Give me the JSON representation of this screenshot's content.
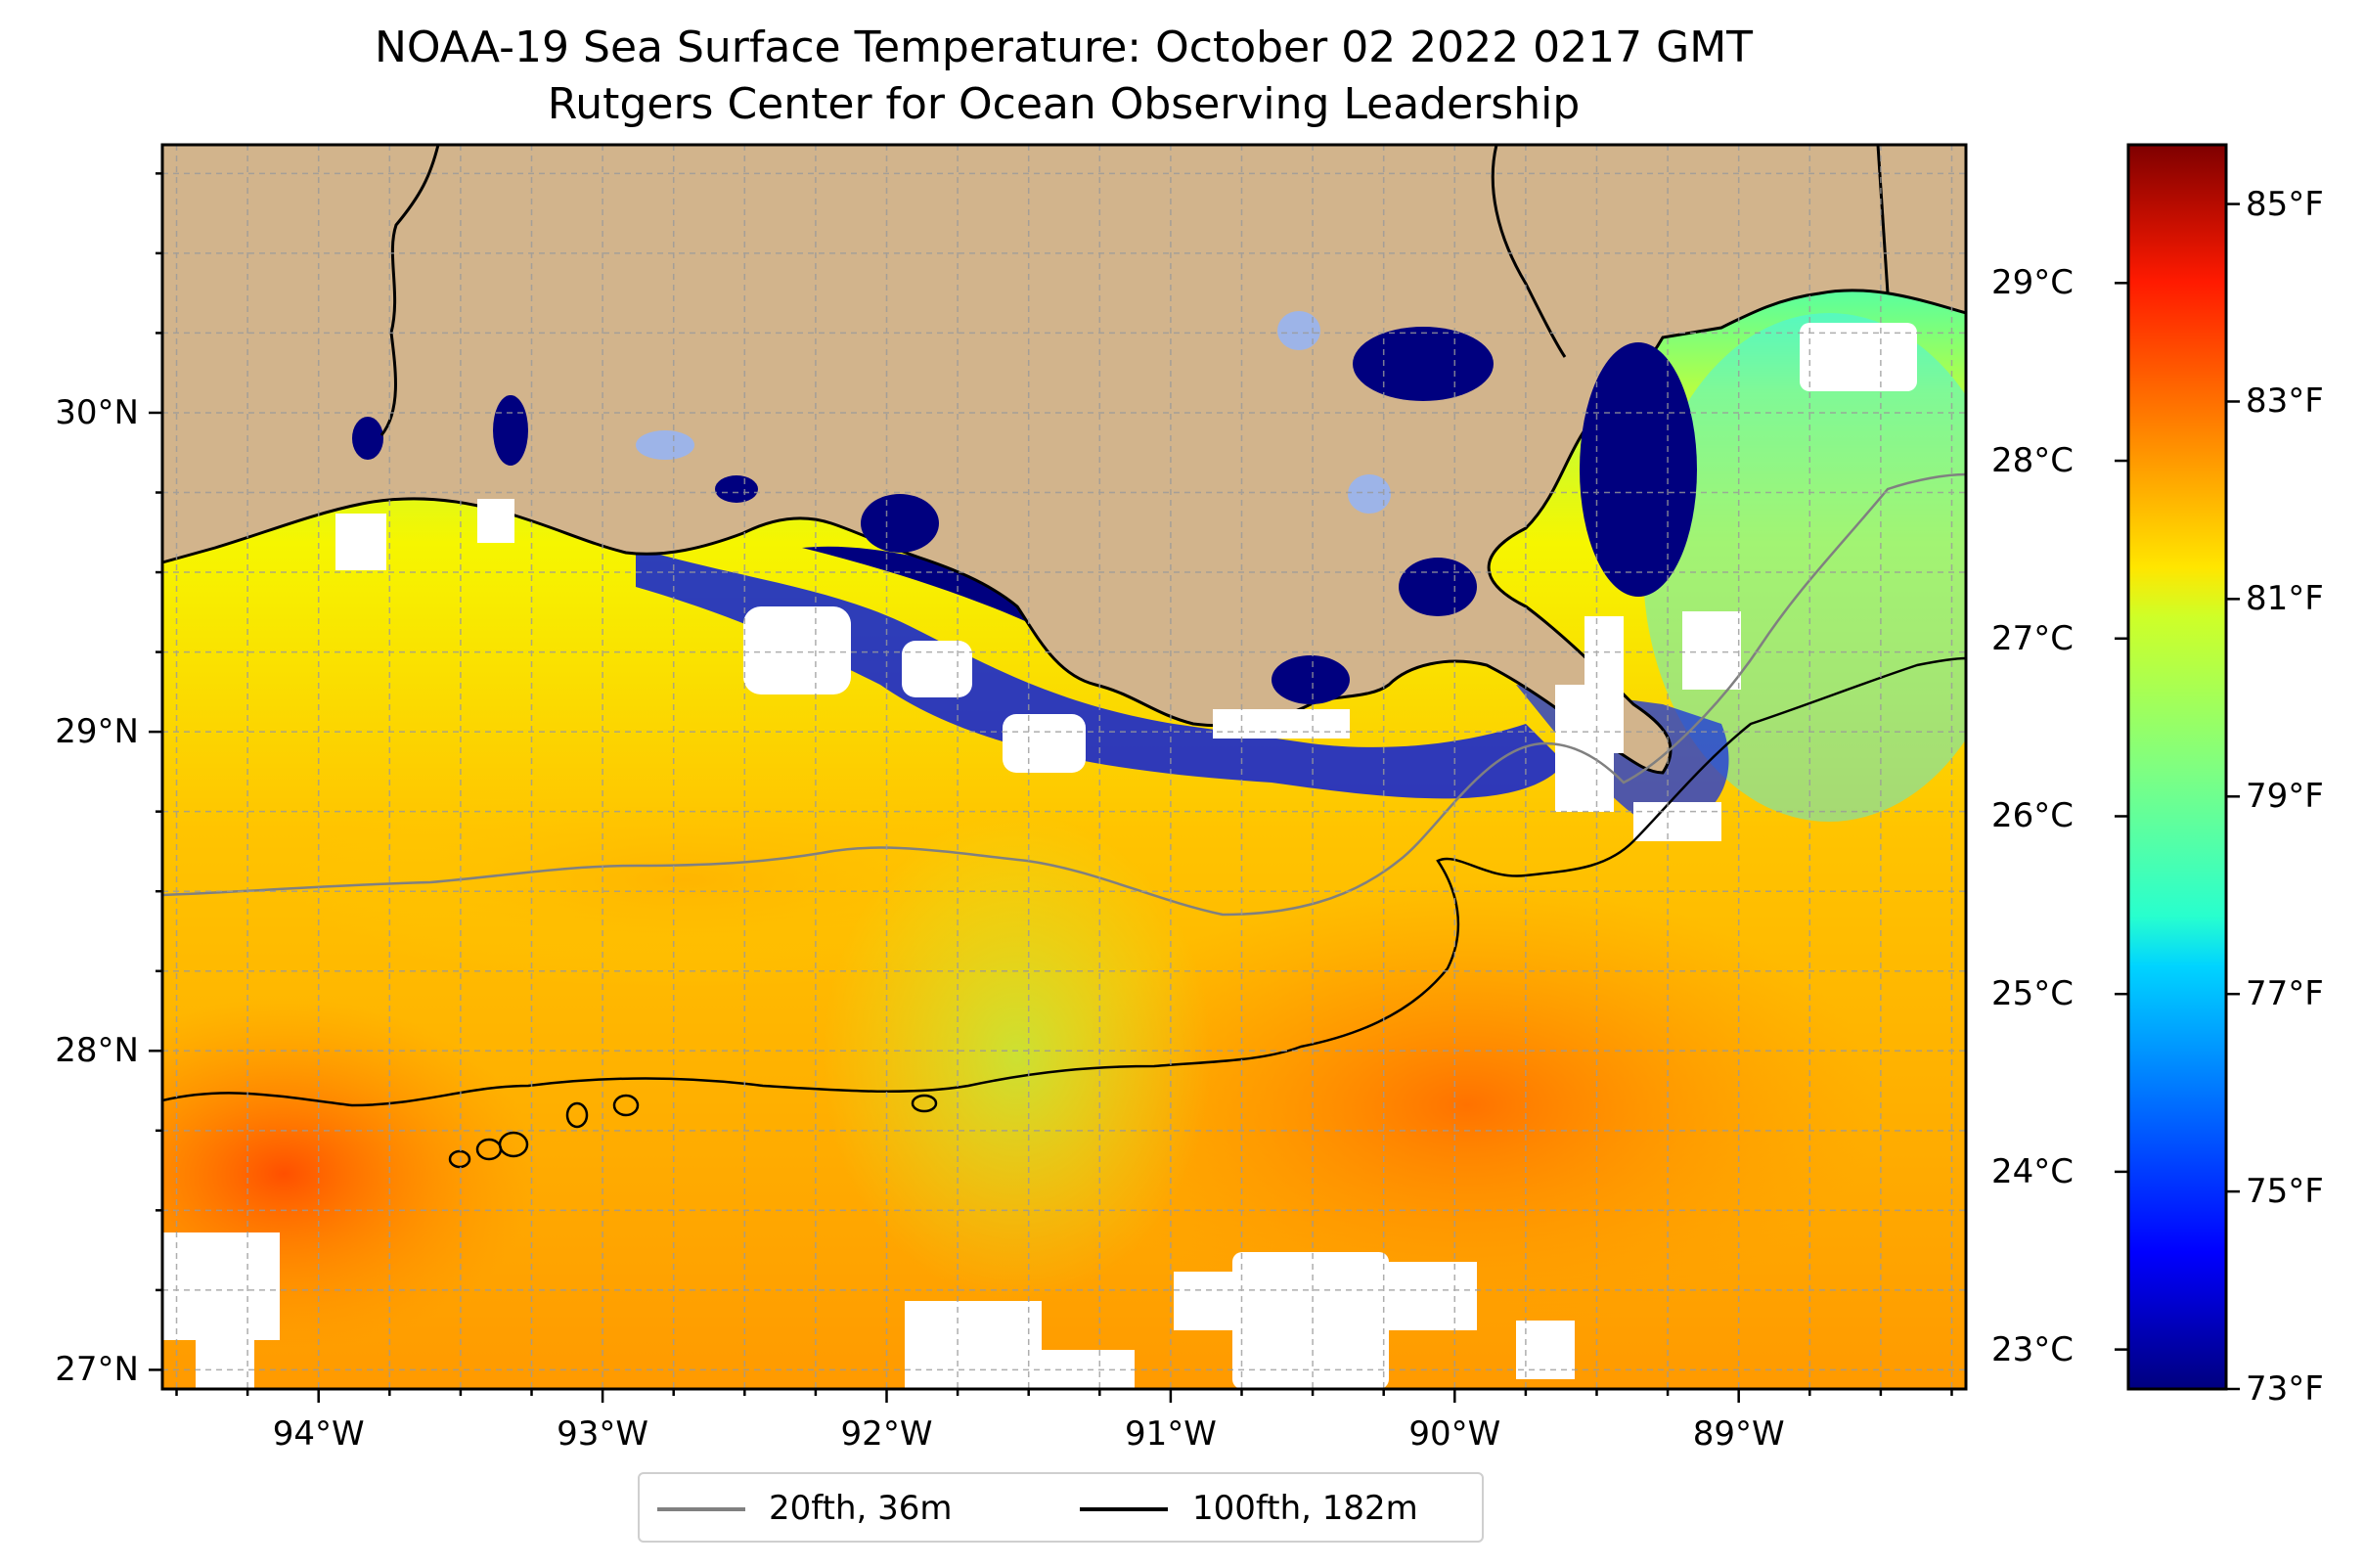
{
  "title": {
    "line1": "NOAA-19 Sea Surface Temperature: October 02 2022 0217 GMT",
    "line2": "Rutgers Center for Ocean Observing Leadership"
  },
  "map": {
    "lat_ticks": [
      {
        "value": 30,
        "label": "30°N"
      },
      {
        "value": 29,
        "label": "29°N"
      },
      {
        "value": 28,
        "label": "28°N"
      },
      {
        "value": 27,
        "label": "27°N"
      }
    ],
    "lon_ticks": [
      {
        "value": -94,
        "label": "94°W"
      },
      {
        "value": -93,
        "label": "93°W"
      },
      {
        "value": -92,
        "label": "92°W"
      },
      {
        "value": -91,
        "label": "91°W"
      },
      {
        "value": -90,
        "label": "90°W"
      },
      {
        "value": -89,
        "label": "89°W"
      }
    ],
    "extent": {
      "lon_min": -94.55,
      "lon_max": -88.2,
      "lat_min": 26.94,
      "lat_max": 30.84
    },
    "colors": {
      "land": "#d2b48c",
      "cloud_mask": "#ffffff",
      "isobath_20fth": "#808080",
      "isobath_100fth": "#000000"
    }
  },
  "colorbar": {
    "colormap": "jet",
    "celsius_ticks": [
      {
        "value": 29,
        "label": "29°C"
      },
      {
        "value": 28,
        "label": "28°C"
      },
      {
        "value": 27,
        "label": "27°C"
      },
      {
        "value": 26,
        "label": "26°C"
      },
      {
        "value": 25,
        "label": "25°C"
      },
      {
        "value": 24,
        "label": "24°C"
      },
      {
        "value": 23,
        "label": "23°C"
      }
    ],
    "fahrenheit_ticks": [
      {
        "value": 85,
        "label": "85°F"
      },
      {
        "value": 83,
        "label": "83°F"
      },
      {
        "value": 81,
        "label": "81°F"
      },
      {
        "value": 79,
        "label": "79°F"
      },
      {
        "value": 77,
        "label": "77°F"
      },
      {
        "value": 75,
        "label": "75°F"
      },
      {
        "value": 73,
        "label": "73°F"
      }
    ],
    "range_f": [
      73,
      85.6
    ]
  },
  "legend": {
    "items": [
      {
        "label": "20fth, 36m",
        "color": "#808080"
      },
      {
        "label": "100fth, 182m",
        "color": "#000000"
      }
    ]
  }
}
